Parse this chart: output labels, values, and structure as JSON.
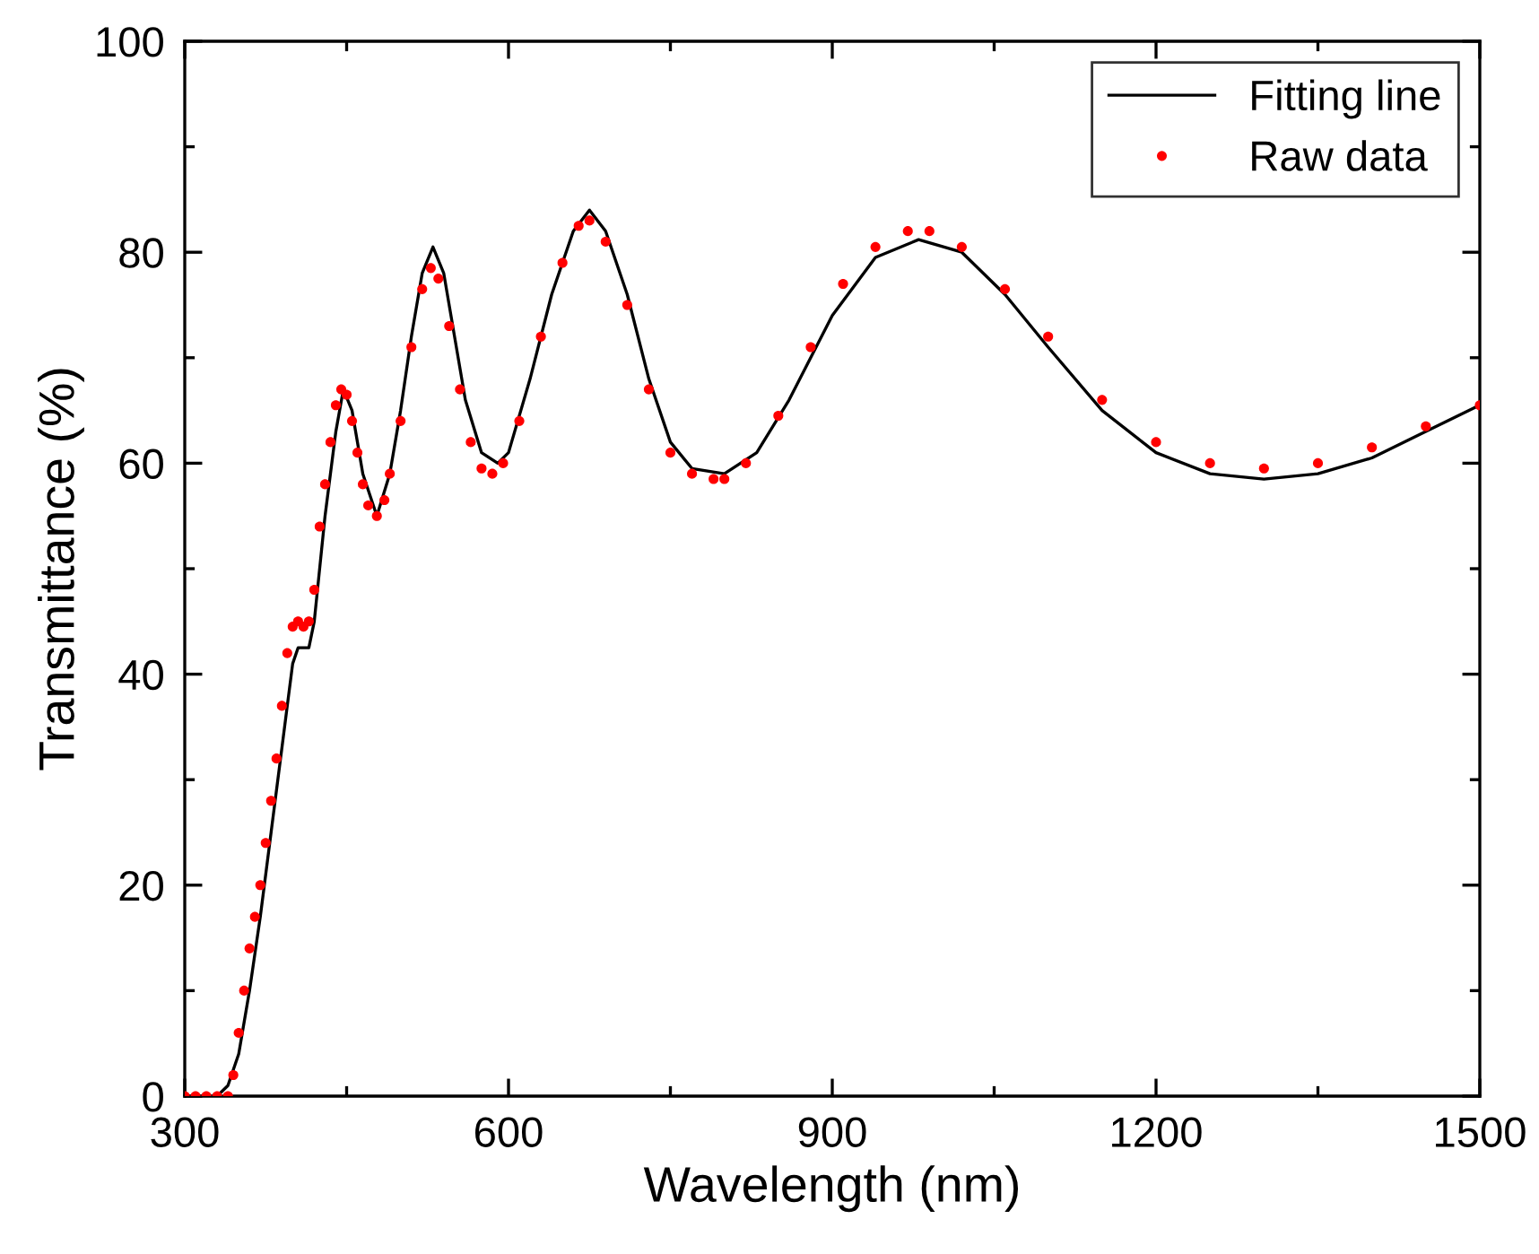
{
  "chart_data": {
    "type": "line",
    "xlabel": "Wavelength (nm)",
    "ylabel": "Transmittance (%)",
    "xlim": [
      300,
      1500
    ],
    "ylim": [
      0,
      100
    ],
    "xticks": [
      300,
      600,
      900,
      1200,
      1500
    ],
    "yticks": [
      0,
      20,
      40,
      60,
      80,
      100
    ],
    "grid": false,
    "legend": "top right",
    "series": [
      {
        "name": "Fitting line",
        "color": "#000000",
        "line_style": "solid",
        "marker": "none",
        "x": [
          300,
          330,
          340,
          350,
          360,
          370,
          380,
          390,
          395,
          400,
          405,
          415,
          420,
          430,
          440,
          447,
          455,
          465,
          478,
          490,
          500,
          510,
          520,
          530,
          540,
          550,
          560,
          575,
          590,
          600,
          620,
          640,
          660,
          675,
          690,
          710,
          730,
          750,
          770,
          800,
          830,
          860,
          900,
          940,
          980,
          1020,
          1060,
          1100,
          1150,
          1200,
          1250,
          1300,
          1350,
          1400,
          1450,
          1500
        ],
        "values": [
          0,
          0,
          1,
          4,
          10,
          17,
          25,
          33,
          37,
          41,
          42.5,
          42.5,
          45,
          55,
          63,
          67,
          65,
          59,
          55,
          59,
          65,
          72,
          78,
          80.5,
          78,
          72,
          66,
          61,
          60,
          61,
          68,
          76,
          82,
          84,
          82,
          76,
          68,
          62,
          59.5,
          59,
          61,
          66,
          74,
          79.5,
          81.2,
          80,
          76,
          71,
          65,
          61,
          59,
          58.5,
          59,
          60.5,
          63,
          65.5
        ]
      },
      {
        "name": "Raw data",
        "type": "scatter",
        "color": "#ff0000",
        "marker": "circle",
        "x": [
          300,
          310,
          320,
          330,
          340,
          345,
          350,
          355,
          360,
          365,
          370,
          375,
          380,
          385,
          390,
          395,
          400,
          405,
          410,
          415,
          420,
          425,
          430,
          435,
          440,
          445,
          450,
          455,
          460,
          465,
          470,
          478,
          485,
          490,
          500,
          510,
          520,
          528,
          535,
          545,
          555,
          565,
          575,
          585,
          595,
          610,
          630,
          650,
          665,
          675,
          690,
          710,
          730,
          750,
          770,
          790,
          800,
          820,
          850,
          880,
          910,
          940,
          970,
          990,
          1020,
          1060,
          1100,
          1150,
          1200,
          1250,
          1300,
          1350,
          1400,
          1450,
          1500
        ],
        "values": [
          0,
          0,
          0,
          0,
          0,
          2,
          6,
          10,
          14,
          17,
          20,
          24,
          28,
          32,
          37,
          42,
          44.5,
          45,
          44.5,
          45,
          48,
          54,
          58,
          62,
          65.5,
          67,
          66.5,
          64,
          61,
          58,
          56,
          55,
          56.5,
          59,
          64,
          71,
          76.5,
          78.5,
          77.5,
          73,
          67,
          62,
          59.5,
          59,
          60,
          64,
          72,
          79,
          82.5,
          83,
          81,
          75,
          67,
          61,
          59,
          58.5,
          58.5,
          60,
          64.5,
          71,
          77,
          80.5,
          82,
          82,
          80.5,
          76.5,
          72,
          66,
          62,
          60,
          59.5,
          60,
          61.5,
          63.5,
          65.5
        ]
      }
    ]
  }
}
